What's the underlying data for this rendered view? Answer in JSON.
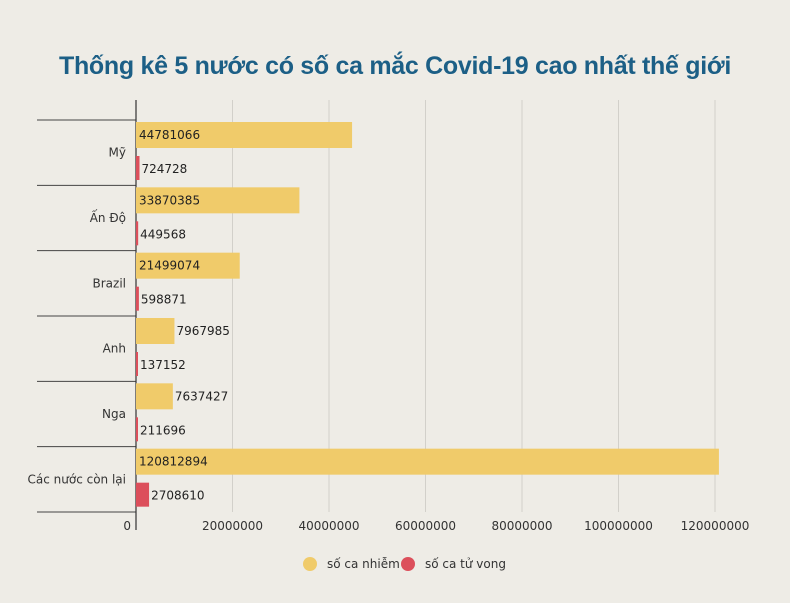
{
  "chart_data": {
    "type": "bar",
    "orientation": "horizontal",
    "title": "Thống kê 5 nước có số ca mắc Covid-19 cao nhất thế giới",
    "categories": [
      "Mỹ",
      "Ấn Độ",
      "Brazil",
      "Anh",
      "Nga",
      "Các nước còn lại"
    ],
    "series": [
      {
        "name": "số ca nhiễm",
        "color": "#f0cb6a",
        "values": [
          44781066,
          33870385,
          21499074,
          7967985,
          7637427,
          120812894
        ]
      },
      {
        "name": "số ca tử vong",
        "color": "#dc4f5b",
        "values": [
          724728,
          449568,
          598871,
          137152,
          211696,
          2708610
        ]
      }
    ],
    "xlim": [
      0,
      120812894
    ],
    "xticks": [
      "0",
      "20000000",
      "40000000",
      "60000000",
      "80000000",
      "100000000",
      "120000000"
    ],
    "grid": true,
    "legend_position": "bottom"
  }
}
